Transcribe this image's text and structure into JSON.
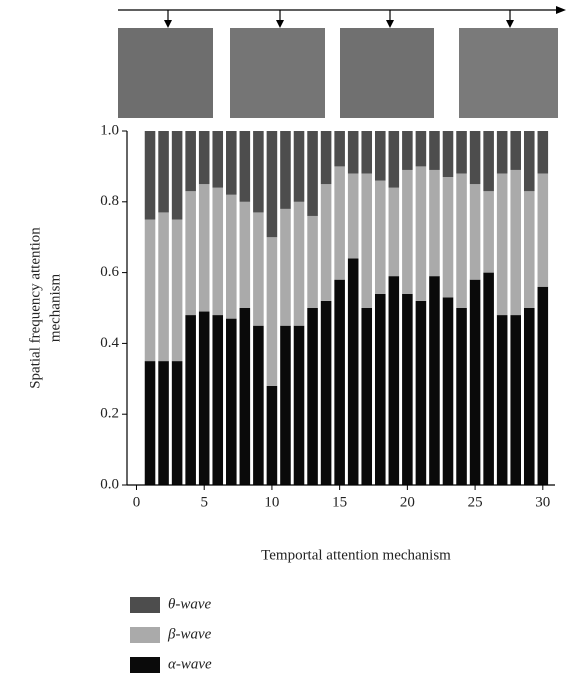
{
  "chart_data": {
    "type": "stacked_bar",
    "xlabel": "Temportal attention mechanism",
    "ylabel": [
      "Spatial frequency attention",
      "mechanism"
    ],
    "x": [
      1,
      2,
      3,
      4,
      5,
      6,
      7,
      8,
      9,
      10,
      11,
      12,
      13,
      14,
      15,
      16,
      17,
      18,
      19,
      20,
      21,
      22,
      23,
      24,
      25,
      26,
      27,
      28,
      29,
      30
    ],
    "series": [
      {
        "name": "α-wave",
        "color": "#0a0a0a",
        "values": [
          0.35,
          0.35,
          0.35,
          0.48,
          0.49,
          0.48,
          0.47,
          0.5,
          0.45,
          0.28,
          0.45,
          0.45,
          0.5,
          0.52,
          0.58,
          0.64,
          0.5,
          0.54,
          0.59,
          0.54,
          0.52,
          0.59,
          0.53,
          0.5,
          0.58,
          0.6,
          0.48,
          0.48,
          0.5,
          0.56
        ]
      },
      {
        "name": "β-wave",
        "color": "#aaaaaa",
        "values": [
          0.4,
          0.42,
          0.4,
          0.35,
          0.36,
          0.36,
          0.35,
          0.3,
          0.32,
          0.42,
          0.33,
          0.35,
          0.26,
          0.33,
          0.32,
          0.24,
          0.38,
          0.32,
          0.25,
          0.35,
          0.38,
          0.3,
          0.34,
          0.38,
          0.27,
          0.23,
          0.4,
          0.41,
          0.33,
          0.32
        ]
      },
      {
        "name": "θ-wave",
        "color": "#4d4d4d",
        "values": [
          0.25,
          0.23,
          0.25,
          0.17,
          0.15,
          0.16,
          0.18,
          0.2,
          0.23,
          0.3,
          0.22,
          0.2,
          0.24,
          0.15,
          0.1,
          0.12,
          0.12,
          0.14,
          0.16,
          0.11,
          0.1,
          0.11,
          0.13,
          0.12,
          0.15,
          0.17,
          0.12,
          0.11,
          0.17,
          0.12
        ]
      }
    ],
    "xlim": [
      -0.7,
      30.9
    ],
    "xticks": [
      0,
      5,
      10,
      15,
      20,
      25,
      30
    ],
    "ylim": [
      0,
      1
    ],
    "yticks": [
      {
        "value": 0,
        "label": "0.0"
      },
      0.2,
      0.4,
      0.6,
      0.8,
      {
        "value": 1,
        "label": "1.0"
      }
    ]
  }
}
